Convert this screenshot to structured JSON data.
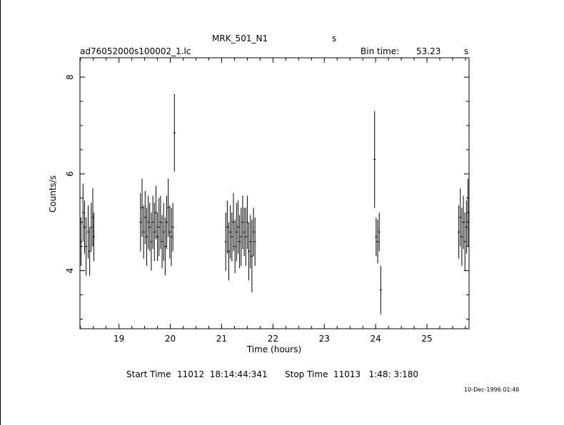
{
  "header": {
    "target": "MRK_501_N1",
    "target_unit": "s",
    "filename": "ad76052000s100002_1.lc",
    "bin_time_label": "Bin time:",
    "bin_time_value": "53.23",
    "bin_time_unit": "s"
  },
  "footer": {
    "start_label": "Start Time",
    "start_value": "11012  18:14:44:341",
    "stop_label": "Stop Time",
    "stop_value": "11013   1:48: 3:180",
    "timestamp": "10-Dec-1996 01:46"
  },
  "chart_data": {
    "type": "scatter",
    "xlabel": "Time (hours)",
    "ylabel": "Counts/s",
    "xlim": [
      18.24,
      25.82
    ],
    "ylim": [
      2.8,
      8.4
    ],
    "x_ticks": [
      19,
      20,
      21,
      22,
      23,
      24,
      25
    ],
    "y_ticks": [
      4,
      6,
      8
    ],
    "series": [
      {
        "points": [
          [
            18.26,
            4.6,
            0.5
          ],
          [
            18.3,
            5.2,
            0.6
          ],
          [
            18.33,
            4.9,
            0.55
          ],
          [
            18.36,
            4.5,
            0.6
          ],
          [
            18.4,
            4.8,
            0.55
          ],
          [
            18.43,
            4.4,
            0.5
          ],
          [
            18.46,
            4.9,
            0.5
          ],
          [
            18.49,
            5.1,
            0.6
          ],
          [
            18.51,
            4.7,
            0.5
          ],
          [
            19.42,
            5.0,
            0.6
          ],
          [
            19.45,
            5.3,
            0.6
          ],
          [
            19.48,
            4.8,
            0.55
          ],
          [
            19.51,
            5.1,
            0.55
          ],
          [
            19.54,
            4.7,
            0.6
          ],
          [
            19.57,
            5.0,
            0.55
          ],
          [
            19.6,
            4.9,
            0.5
          ],
          [
            19.63,
            4.6,
            0.6
          ],
          [
            19.66,
            5.0,
            0.55
          ],
          [
            19.69,
            4.8,
            0.6
          ],
          [
            19.72,
            5.2,
            0.55
          ],
          [
            19.75,
            4.7,
            0.5
          ],
          [
            19.78,
            4.9,
            0.6
          ],
          [
            19.81,
            5.0,
            0.55
          ],
          [
            19.84,
            4.6,
            0.55
          ],
          [
            19.87,
            4.8,
            0.6
          ],
          [
            19.9,
            4.5,
            0.6
          ],
          [
            19.93,
            5.0,
            0.55
          ],
          [
            19.96,
            5.3,
            0.6
          ],
          [
            19.99,
            4.8,
            0.55
          ],
          [
            20.02,
            4.7,
            0.6
          ],
          [
            20.05,
            4.9,
            0.5
          ],
          [
            20.08,
            6.85,
            0.8
          ],
          [
            21.08,
            4.6,
            0.6
          ],
          [
            21.11,
            4.9,
            0.55
          ],
          [
            21.14,
            4.4,
            0.6
          ],
          [
            21.17,
            4.8,
            0.55
          ],
          [
            21.2,
            4.7,
            0.5
          ],
          [
            21.23,
            5.0,
            0.6
          ],
          [
            21.26,
            4.5,
            0.55
          ],
          [
            21.29,
            4.8,
            0.6
          ],
          [
            21.32,
            4.9,
            0.55
          ],
          [
            21.35,
            4.6,
            0.55
          ],
          [
            21.38,
            4.7,
            0.6
          ],
          [
            21.41,
            5.0,
            0.55
          ],
          [
            21.44,
            4.8,
            0.5
          ],
          [
            21.47,
            4.7,
            0.6
          ],
          [
            21.5,
            5.0,
            0.55
          ],
          [
            21.53,
            4.4,
            0.6
          ],
          [
            21.56,
            4.6,
            0.55
          ],
          [
            21.59,
            4.3,
            0.75
          ],
          [
            21.62,
            4.8,
            0.5
          ],
          [
            21.65,
            4.6,
            0.5
          ],
          [
            23.98,
            6.3,
            1.0
          ],
          [
            24.01,
            4.7,
            0.4
          ],
          [
            24.04,
            4.6,
            0.45
          ],
          [
            24.07,
            4.8,
            0.4
          ],
          [
            24.1,
            3.6,
            0.5
          ],
          [
            25.62,
            4.8,
            0.55
          ],
          [
            25.65,
            5.1,
            0.6
          ],
          [
            25.68,
            4.7,
            0.6
          ],
          [
            25.71,
            5.0,
            0.55
          ],
          [
            25.74,
            4.6,
            0.6
          ],
          [
            25.77,
            4.9,
            0.55
          ],
          [
            25.8,
            5.2,
            0.7
          ]
        ]
      }
    ]
  }
}
